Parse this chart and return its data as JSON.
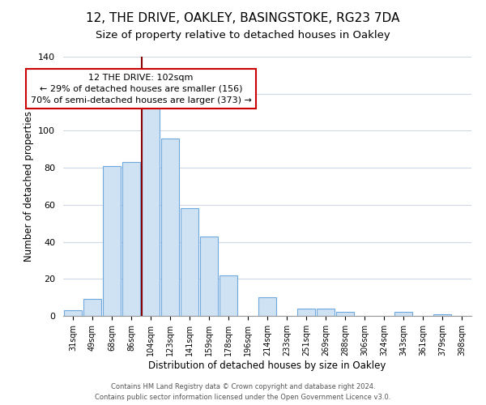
{
  "title": "12, THE DRIVE, OAKLEY, BASINGSTOKE, RG23 7DA",
  "subtitle": "Size of property relative to detached houses in Oakley",
  "xlabel": "Distribution of detached houses by size in Oakley",
  "ylabel": "Number of detached properties",
  "bar_labels": [
    "31sqm",
    "49sqm",
    "68sqm",
    "86sqm",
    "104sqm",
    "123sqm",
    "141sqm",
    "159sqm",
    "178sqm",
    "196sqm",
    "214sqm",
    "233sqm",
    "251sqm",
    "269sqm",
    "288sqm",
    "306sqm",
    "324sqm",
    "343sqm",
    "361sqm",
    "379sqm",
    "398sqm"
  ],
  "bar_values": [
    3,
    9,
    81,
    83,
    114,
    96,
    58,
    43,
    22,
    0,
    10,
    0,
    4,
    4,
    2,
    0,
    0,
    2,
    0,
    1,
    0
  ],
  "bar_color": "#cfe2f3",
  "bar_edge_color": "#6fa8dc",
  "vline_x_index": 4,
  "vline_color": "#8b0000",
  "ylim": [
    0,
    140
  ],
  "annotation_text": "12 THE DRIVE: 102sqm\n← 29% of detached houses are smaller (156)\n70% of semi-detached houses are larger (373) →",
  "annotation_box_edgecolor": "#cc0000",
  "annotation_box_facecolor": "#ffffff",
  "footer1": "Contains HM Land Registry data © Crown copyright and database right 2024.",
  "footer2": "Contains public sector information licensed under the Open Government Licence v3.0.",
  "background_color": "#ffffff",
  "title_fontsize": 11,
  "subtitle_fontsize": 9.5,
  "grid_color": "#d0d8e8"
}
